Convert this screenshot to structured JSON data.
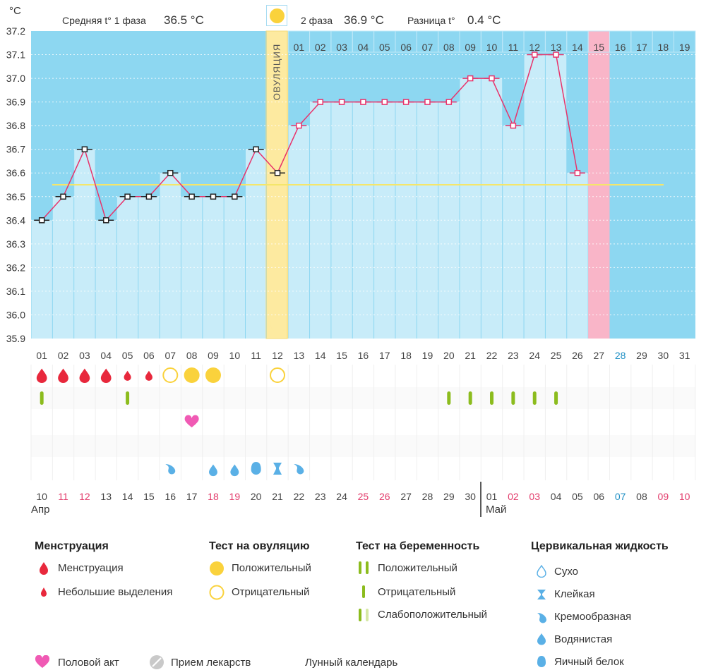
{
  "header": {
    "unit": "°C",
    "phase1_label": "Средняя t° 1 фаза",
    "phase1_value": "36.5 °C",
    "phase2_label": "2 фаза",
    "phase2_value": "36.9 °C",
    "diff_label": "Разница t°",
    "diff_value": "0.4 °C"
  },
  "ovulation_label": "ОВУЛЯЦИЯ",
  "chart_data": {
    "type": "line",
    "ylim": [
      35.9,
      37.2
    ],
    "yticks": [
      "37.2",
      "37.1",
      "37.0",
      "36.9",
      "36.8",
      "36.7",
      "36.6",
      "36.5",
      "36.4",
      "36.3",
      "36.2",
      "36.1",
      "36.0",
      "35.9"
    ],
    "cycle_days": [
      "01",
      "02",
      "03",
      "04",
      "05",
      "06",
      "07",
      "08",
      "09",
      "10",
      "11",
      "12",
      "13",
      "14",
      "15",
      "16",
      "17",
      "18",
      "19",
      "20",
      "21",
      "22",
      "23",
      "24",
      "25",
      "26",
      "27",
      "28",
      "29",
      "30",
      "31"
    ],
    "phase2_days": [
      "01",
      "02",
      "03",
      "04",
      "05",
      "06",
      "07",
      "08",
      "09",
      "10",
      "11",
      "12",
      "13",
      "14",
      "15",
      "16",
      "17",
      "18",
      "19"
    ],
    "temps": [
      36.4,
      36.5,
      36.7,
      36.4,
      36.5,
      36.5,
      36.6,
      36.5,
      36.5,
      36.5,
      36.7,
      36.6,
      36.8,
      36.9,
      36.9,
      36.9,
      36.9,
      36.9,
      36.9,
      36.9,
      37.0,
      37.0,
      36.8,
      37.1,
      37.1,
      36.6
    ],
    "coverline": 36.55,
    "ovulation_day_index": 11,
    "highlight_day_index": 26
  },
  "calendar": {
    "dates": [
      "10",
      "11",
      "12",
      "13",
      "14",
      "15",
      "16",
      "17",
      "18",
      "19",
      "20",
      "21",
      "22",
      "23",
      "24",
      "25",
      "26",
      "27",
      "28",
      "29",
      "30",
      "01",
      "02",
      "03",
      "04",
      "05",
      "06",
      "07",
      "08",
      "09",
      "10"
    ],
    "month1": "Апр",
    "month2": "Май"
  },
  "legend": {
    "menstruation_title": "Менструация",
    "menstruation_items": [
      "Менструация",
      "Небольшие выделения"
    ],
    "ovulation_title": "Тест на овуляцию",
    "ovulation_items": [
      "Положительный",
      "Отрицательный"
    ],
    "pregnancy_title": "Тест на беременность",
    "pregnancy_items": [
      "Положительный",
      "Отрицательный",
      "Слабоположительный"
    ],
    "cervical_title": "Цервикальная жидкость",
    "cervical_items": [
      "Сухо",
      "Клейкая",
      "Кремообразная",
      "Водянистая",
      "Яичный белок"
    ],
    "bottom_items": [
      "Половой акт",
      "Прием лекарств",
      "Лунный календарь"
    ]
  },
  "colors": {
    "sky": "#8dd7f1",
    "bar": "#c8ecf9",
    "ovulation": "#fdeaa0",
    "highlight": "#f9b5c8",
    "line": "#e8336b",
    "coverline": "#f5e66a",
    "blood": "#e8283c",
    "sun": "#fad23c",
    "test": "#8cbc1e",
    "heart": "#f05ab4",
    "drop": "#5ab0e6"
  }
}
